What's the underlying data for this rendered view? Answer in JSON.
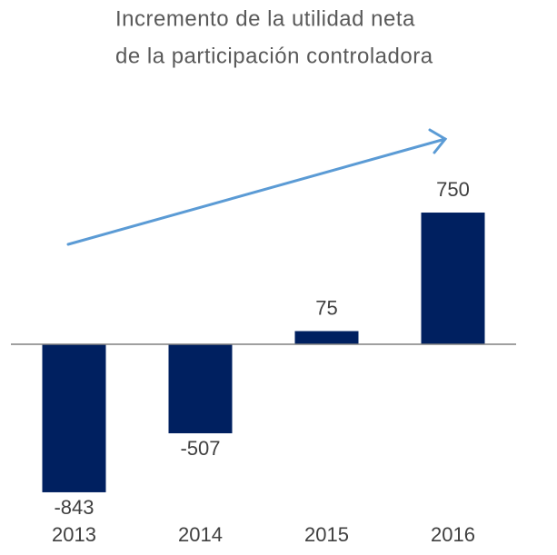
{
  "chart_data": {
    "type": "bar",
    "title": [
      "Incremento de la utilidad neta",
      "de la participación controladora"
    ],
    "categories": [
      "2013",
      "2014",
      "2015",
      "2016"
    ],
    "values": [
      -843,
      -507,
      75,
      750
    ],
    "color": "#002060",
    "ylim": [
      -1000,
      1000
    ]
  }
}
